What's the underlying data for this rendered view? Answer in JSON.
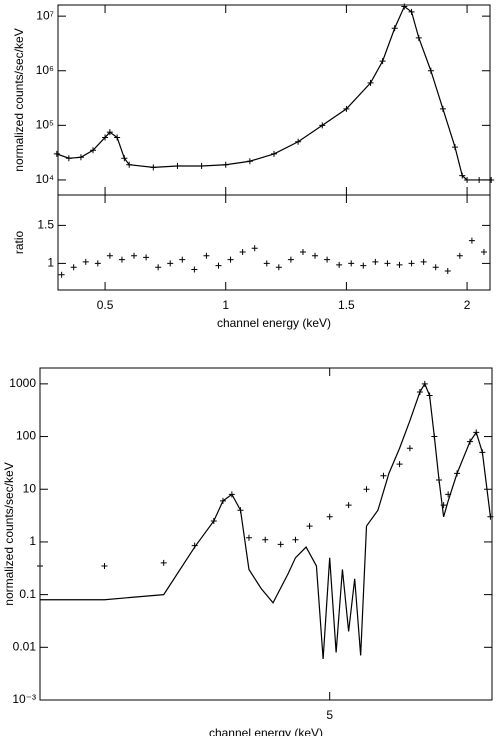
{
  "chart_data": [
    {
      "type": "line",
      "ylabel": "normalized counts/sec/keV",
      "ylog": true,
      "x": [
        0.3,
        0.35,
        0.4,
        0.45,
        0.5,
        0.52,
        0.55,
        0.58,
        0.6,
        0.7,
        0.8,
        0.9,
        1.0,
        1.1,
        1.2,
        1.3,
        1.4,
        1.5,
        1.6,
        1.65,
        1.7,
        1.74,
        1.77,
        1.8,
        1.85,
        1.9,
        1.95,
        1.98,
        2.0,
        2.05,
        2.1
      ],
      "series": [
        {
          "color": "#000000",
          "style": "line+points",
          "values": [
            30000,
            25000,
            26000,
            35000,
            60000,
            75000,
            60000,
            25000,
            19000,
            17000,
            18000,
            18000,
            19000,
            22000,
            30000,
            50000,
            100000,
            200000,
            600000,
            1500000,
            6000000,
            15000000,
            12000000,
            4000000,
            1000000,
            200000,
            40000,
            12000,
            10000,
            10000,
            10000
          ]
        }
      ],
      "xlim": [
        0.305,
        2.095
      ],
      "xticks": [
        0.5,
        1,
        1.5,
        2
      ],
      "ylim": [
        5300,
        16000000
      ],
      "yticks": [
        {
          "value": 10000,
          "label": "10⁴"
        },
        {
          "value": 100000,
          "label": "10⁵"
        },
        {
          "value": 1000000,
          "label": "10⁶"
        },
        {
          "value": 10000000,
          "label": "10⁷"
        }
      ]
    },
    {
      "type": "line",
      "ylabel": "ratio",
      "xlabel": "channel energy (keV)",
      "x": [
        0.32,
        0.37,
        0.42,
        0.47,
        0.52,
        0.57,
        0.62,
        0.67,
        0.72,
        0.77,
        0.82,
        0.87,
        0.92,
        0.97,
        1.02,
        1.07,
        1.12,
        1.17,
        1.22,
        1.27,
        1.32,
        1.37,
        1.42,
        1.47,
        1.52,
        1.57,
        1.62,
        1.67,
        1.72,
        1.77,
        1.82,
        1.87,
        1.92,
        1.97,
        2.02,
        2.07
      ],
      "series": [
        {
          "color": "#000000",
          "style": "points",
          "values": [
            0.85,
            0.95,
            1.02,
            1.0,
            1.1,
            1.05,
            1.1,
            1.08,
            0.95,
            1.0,
            1.05,
            0.92,
            1.1,
            0.97,
            1.05,
            1.15,
            1.2,
            1.0,
            0.95,
            1.05,
            1.15,
            1.1,
            1.05,
            0.98,
            1.0,
            0.97,
            1.02,
            1.0,
            0.98,
            1.0,
            1.02,
            0.95,
            0.9,
            1.1,
            1.3,
            1.15
          ]
        }
      ],
      "xlim": [
        0.305,
        2.095
      ],
      "xticks": [
        0.5,
        1,
        1.5,
        2
      ],
      "ylim": [
        0.65,
        1.9
      ],
      "yticks": [
        1,
        1.5
      ]
    },
    {
      "type": "line",
      "ylabel": "normalized counts/sec/keV",
      "xlabel": "channel energy (keV)",
      "xlog": true,
      "ylog": true,
      "xlim": [
        2.05,
        8.24
      ],
      "xticks": [
        5
      ],
      "ylim": [
        0.001,
        2000
      ],
      "yticks": [
        {
          "value": 0.001,
          "label": "10⁻³"
        },
        0.01,
        0.1,
        1,
        10,
        100,
        1000
      ],
      "series": [
        {
          "color": "#000000",
          "style": "points",
          "x": [
            2.05,
            2.5,
            3.0,
            3.3,
            3.5,
            3.6,
            3.7,
            3.8,
            3.9,
            4.1,
            4.3,
            4.5,
            4.7,
            5.0,
            5.3,
            5.6,
            5.9,
            6.2,
            6.4,
            6.6,
            6.7,
            6.8,
            6.9,
            7.0,
            7.1,
            7.2,
            7.4,
            7.7,
            7.85,
            8.0,
            8.2
          ],
          "values": [
            0.35,
            0.35,
            0.4,
            0.85,
            2.5,
            6,
            8,
            4,
            1.2,
            1.1,
            0.9,
            1.1,
            2,
            3,
            5,
            10,
            18,
            30,
            60,
            700,
            1000,
            600,
            100,
            15,
            5,
            8,
            20,
            80,
            120,
            50,
            3
          ]
        },
        {
          "color": "#000000",
          "style": "line",
          "x": [
            2.05,
            2.5,
            3.0,
            3.3,
            3.5,
            3.6,
            3.7,
            3.8,
            3.9,
            4.05,
            4.2,
            4.4,
            4.5,
            4.65,
            4.8,
            4.9,
            5.0,
            5.1,
            5.2,
            5.3,
            5.4,
            5.5,
            5.6,
            5.8,
            6.0,
            6.2,
            6.4,
            6.6,
            6.7,
            6.8,
            6.9,
            7.0,
            7.1,
            7.2,
            7.4,
            7.7,
            7.85,
            8.0,
            8.2
          ],
          "values": [
            0.08,
            0.08,
            0.1,
            0.8,
            2.5,
            6,
            8,
            4,
            0.3,
            0.13,
            0.07,
            0.25,
            0.5,
            0.8,
            0.35,
            0.006,
            0.5,
            0.008,
            0.3,
            0.02,
            0.2,
            0.007,
            2,
            4,
            20,
            60,
            200,
            700,
            1000,
            600,
            100,
            15,
            3,
            6,
            20,
            80,
            120,
            50,
            3
          ]
        }
      ]
    }
  ]
}
